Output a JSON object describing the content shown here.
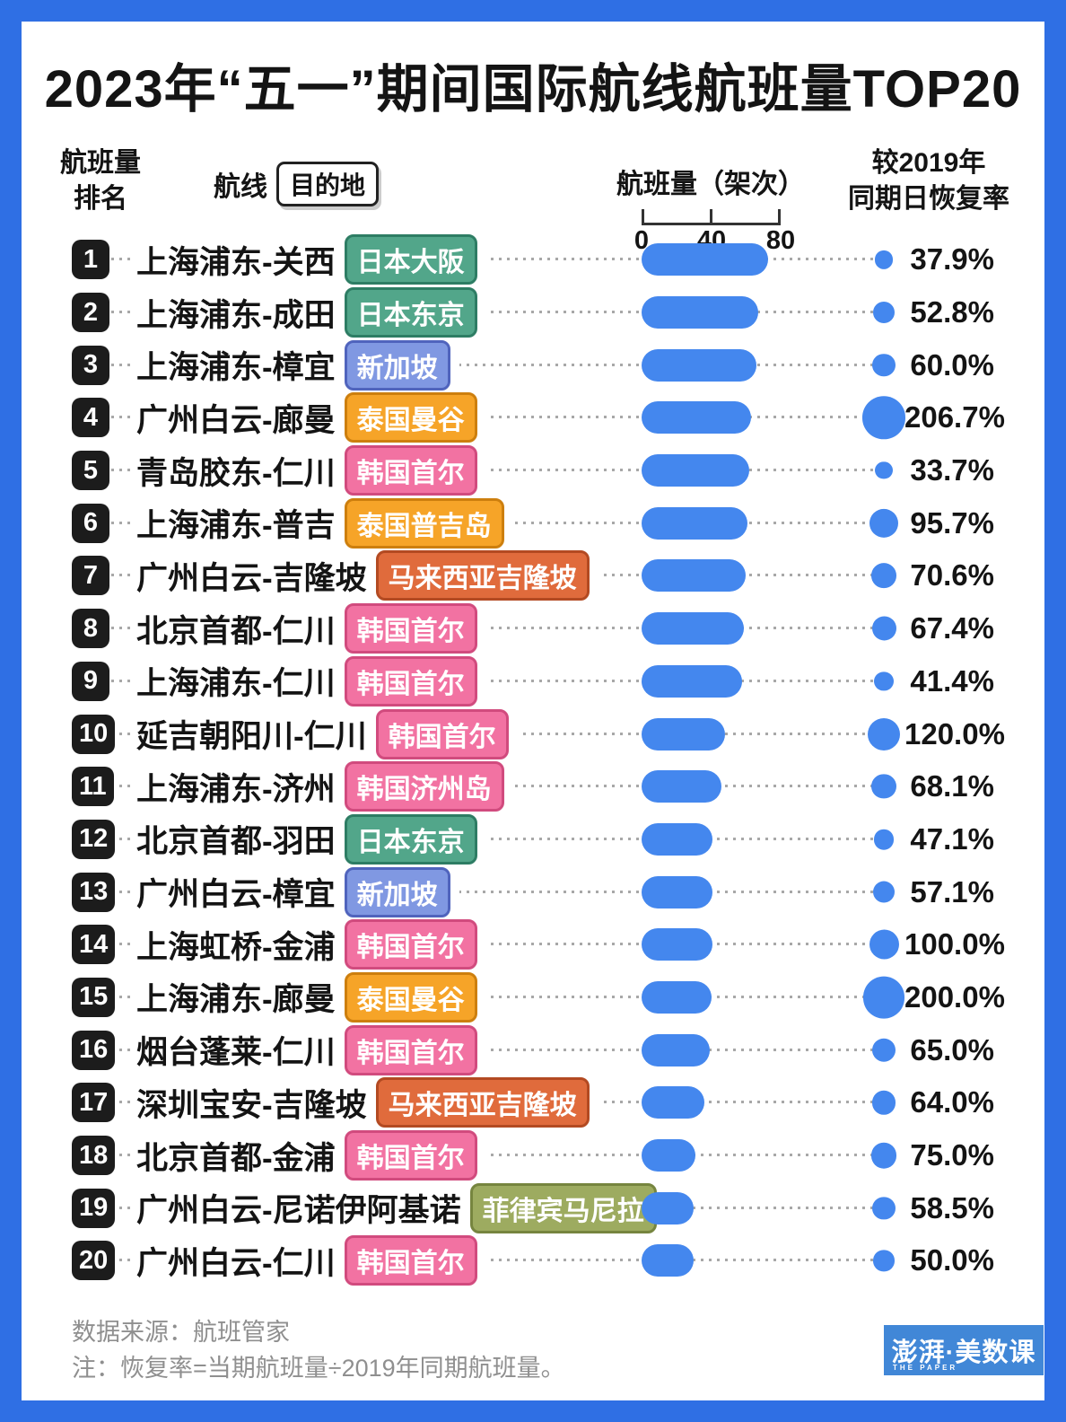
{
  "page": {
    "title": "2023年“五一”期间国际航线航班量TOP20"
  },
  "colors": {
    "frame": "#2f6fe4",
    "bar": "#4487ee",
    "circle": "#4487ee",
    "rank_badge": "#1c1c1c",
    "leader_dots": "#a8a8a8",
    "footer_text": "#8f8f8f",
    "logo_bg": "#4187d7"
  },
  "tag_colors": {
    "green": {
      "bg": "#52a68a",
      "border": "#2e7d64"
    },
    "blue": {
      "bg": "#8098e2",
      "border": "#5064bd"
    },
    "orange": {
      "bg": "#f6a428",
      "border": "#cd7f0e"
    },
    "deep_orange": {
      "bg": "#e06b3c",
      "border": "#b34a22"
    },
    "pink": {
      "bg": "#f272a2",
      "border": "#d14b7e"
    },
    "olive": {
      "bg": "#9dab60",
      "border": "#76853f"
    }
  },
  "header": {
    "rank_line1": "航班量",
    "rank_line2": "排名",
    "route_label": "航线",
    "route_chip": "目的地",
    "volume_label": "航班量（架次）",
    "recovery_line1": "较2019年",
    "recovery_line2": "同期日恢复率",
    "axis_ticks": [
      "0",
      "40",
      "80"
    ]
  },
  "rows": [
    {
      "rank": "1",
      "route": "上海浦东-关西",
      "destination": "日本大阪",
      "color": "green",
      "volume": 73,
      "recovery": 37.9,
      "recovery_label": "37.9%"
    },
    {
      "rank": "2",
      "route": "上海浦东-成田",
      "destination": "日本东京",
      "color": "green",
      "volume": 67,
      "recovery": 52.8,
      "recovery_label": "52.8%"
    },
    {
      "rank": "3",
      "route": "上海浦东-樟宜",
      "destination": "新加坡",
      "color": "blue",
      "volume": 66,
      "recovery": 60.0,
      "recovery_label": "60.0%"
    },
    {
      "rank": "4",
      "route": "广州白云-廊曼",
      "destination": "泰国曼谷",
      "color": "orange",
      "volume": 63,
      "recovery": 206.7,
      "recovery_label": "206.7%"
    },
    {
      "rank": "5",
      "route": "青岛胶东-仁川",
      "destination": "韩国首尔",
      "color": "pink",
      "volume": 62,
      "recovery": 33.7,
      "recovery_label": "33.7%"
    },
    {
      "rank": "6",
      "route": "上海浦东-普吉",
      "destination": "泰国普吉岛",
      "color": "orange",
      "volume": 61,
      "recovery": 95.7,
      "recovery_label": "95.7%"
    },
    {
      "rank": "7",
      "route": "广州白云-吉隆坡",
      "destination": "马来西亚吉隆坡",
      "color": "deep_orange",
      "volume": 60,
      "recovery": 70.6,
      "recovery_label": "70.6%"
    },
    {
      "rank": "8",
      "route": "北京首都-仁川",
      "destination": "韩国首尔",
      "color": "pink",
      "volume": 59,
      "recovery": 67.4,
      "recovery_label": "67.4%"
    },
    {
      "rank": "9",
      "route": "上海浦东-仁川",
      "destination": "韩国首尔",
      "color": "pink",
      "volume": 58,
      "recovery": 41.4,
      "recovery_label": "41.4%"
    },
    {
      "rank": "10",
      "route": "延吉朝阳川-仁川",
      "destination": "韩国首尔",
      "color": "pink",
      "volume": 48,
      "recovery": 120.0,
      "recovery_label": "120.0%"
    },
    {
      "rank": "11",
      "route": "上海浦东-济州",
      "destination": "韩国济州岛",
      "color": "pink",
      "volume": 46,
      "recovery": 68.1,
      "recovery_label": "68.1%"
    },
    {
      "rank": "12",
      "route": "北京首都-羽田",
      "destination": "日本东京",
      "color": "green",
      "volume": 41,
      "recovery": 47.1,
      "recovery_label": "47.1%"
    },
    {
      "rank": "13",
      "route": "广州白云-樟宜",
      "destination": "新加坡",
      "color": "blue",
      "volume": 41,
      "recovery": 57.1,
      "recovery_label": "57.1%"
    },
    {
      "rank": "14",
      "route": "上海虹桥-金浦",
      "destination": "韩国首尔",
      "color": "pink",
      "volume": 41,
      "recovery": 100.0,
      "recovery_label": "100.0%"
    },
    {
      "rank": "15",
      "route": "上海浦东-廊曼",
      "destination": "泰国曼谷",
      "color": "orange",
      "volume": 40,
      "recovery": 200.0,
      "recovery_label": "200.0%"
    },
    {
      "rank": "16",
      "route": "烟台蓬莱-仁川",
      "destination": "韩国首尔",
      "color": "pink",
      "volume": 39,
      "recovery": 65.0,
      "recovery_label": "65.0%"
    },
    {
      "rank": "17",
      "route": "深圳宝安-吉隆坡",
      "destination": "马来西亚吉隆坡",
      "color": "deep_orange",
      "volume": 36,
      "recovery": 64.0,
      "recovery_label": "64.0%"
    },
    {
      "rank": "18",
      "route": "北京首都-金浦",
      "destination": "韩国首尔",
      "color": "pink",
      "volume": 31,
      "recovery": 75.0,
      "recovery_label": "75.0%"
    },
    {
      "rank": "19",
      "route": "广州白云-尼诺伊阿基诺",
      "destination": "菲律宾马尼拉",
      "color": "olive",
      "volume": 30,
      "recovery": 58.5,
      "recovery_label": "58.5%"
    },
    {
      "rank": "20",
      "route": "广州白云-仁川",
      "destination": "韩国首尔",
      "color": "pink",
      "volume": 30,
      "recovery": 50.0,
      "recovery_label": "50.0%"
    }
  ],
  "footer": {
    "source": "数据来源：航班管家",
    "note": "注：恢复率=当期航班量÷2019年同期航班量。",
    "logo_main": "澎湃·美数课",
    "logo_sub": "THE PAPER"
  },
  "chart_data": {
    "type": "bar",
    "title": "2023年“五一”期间国际航线航班量TOP20",
    "categories": [
      "上海浦东-关西（日本大阪）",
      "上海浦东-成田（日本东京）",
      "上海浦东-樟宜（新加坡）",
      "广州白云-廊曼（泰国曼谷）",
      "青岛胶东-仁川（韩国首尔）",
      "上海浦东-普吉（泰国普吉岛）",
      "广州白云-吉隆坡（马来西亚吉隆坡）",
      "北京首都-仁川（韩国首尔）",
      "上海浦东-仁川（韩国首尔）",
      "延吉朝阳川-仁川（韩国首尔）",
      "上海浦东-济州（韩国济州岛）",
      "北京首都-羽田（日本东京）",
      "广州白云-樟宜（新加坡）",
      "上海虹桥-金浦（韩国首尔）",
      "上海浦东-廊曼（泰国曼谷）",
      "烟台蓬莱-仁川（韩国首尔）",
      "深圳宝安-吉隆坡（马来西亚吉隆坡）",
      "北京首都-金浦（韩国首尔）",
      "广州白云-尼诺伊阿基诺（菲律宾马尼拉）",
      "广州白云-仁川（韩国首尔）"
    ],
    "series": [
      {
        "name": "航班量（架次，按条形长度估读）",
        "values": [
          73,
          67,
          66,
          63,
          62,
          61,
          60,
          59,
          58,
          48,
          46,
          41,
          41,
          41,
          40,
          39,
          36,
          31,
          30,
          30
        ]
      },
      {
        "name": "较2019年同期日恢复率（%）",
        "values": [
          37.9,
          52.8,
          60.0,
          206.7,
          33.7,
          95.7,
          70.6,
          67.4,
          41.4,
          120.0,
          68.1,
          47.1,
          57.1,
          100.0,
          200.0,
          65.0,
          64.0,
          75.0,
          58.5,
          50.0
        ]
      }
    ],
    "xlabel": "航班量（架次）",
    "xlim": [
      0,
      80
    ],
    "x_ticks": [
      0,
      40,
      80
    ],
    "grid": false,
    "legend_position": "none",
    "orientation": "horizontal"
  }
}
